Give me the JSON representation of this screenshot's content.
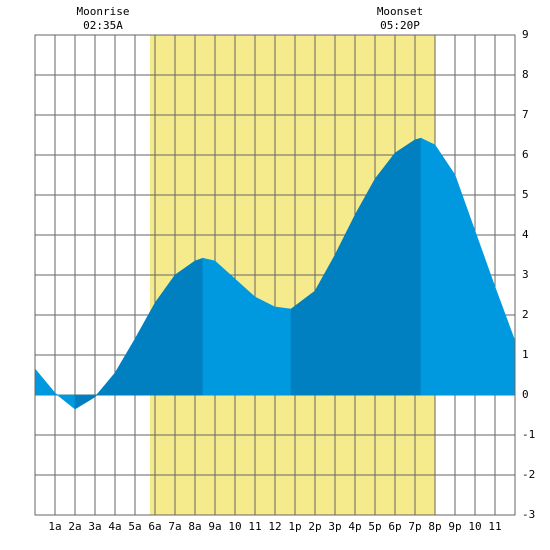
{
  "chart_data": {
    "type": "area",
    "annotations": [
      {
        "label": "Moonrise",
        "time": "02:35A"
      },
      {
        "label": "Moonset",
        "time": "05:20P"
      }
    ],
    "daylight": [
      5.75,
      20
    ],
    "x": [
      0,
      1,
      2,
      3,
      4,
      5,
      6,
      7,
      8,
      8.4,
      9,
      10,
      11,
      12,
      12.8,
      14,
      15,
      16,
      17,
      18,
      19,
      19.3,
      20,
      21,
      22,
      23,
      24
    ],
    "values": [
      0.65,
      0.05,
      -0.35,
      -0.05,
      0.55,
      1.4,
      2.3,
      3.0,
      3.35,
      3.42,
      3.35,
      2.9,
      2.45,
      2.2,
      2.15,
      2.6,
      3.5,
      4.5,
      5.4,
      6.05,
      6.38,
      6.42,
      6.25,
      5.5,
      4.1,
      2.7,
      1.35
    ],
    "rising_color": "#0080c0",
    "falling_color": "#0099e0",
    "daylight_color": "#f5eb8c",
    "xlim": [
      0,
      24
    ],
    "xticks": [
      {
        "value": 1,
        "label": "1a"
      },
      {
        "value": 2,
        "label": "2a"
      },
      {
        "value": 3,
        "label": "3a"
      },
      {
        "value": 4,
        "label": "4a"
      },
      {
        "value": 5,
        "label": "5a"
      },
      {
        "value": 6,
        "label": "6a"
      },
      {
        "value": 7,
        "label": "7a"
      },
      {
        "value": 8,
        "label": "8a"
      },
      {
        "value": 9,
        "label": "9a"
      },
      10,
      11,
      12,
      {
        "value": 13,
        "label": "1p"
      },
      {
        "value": 14,
        "label": "2p"
      },
      {
        "value": 15,
        "label": "3p"
      },
      {
        "value": 16,
        "label": "4p"
      },
      {
        "value": 17,
        "label": "5p"
      },
      {
        "value": 18,
        "label": "6p"
      },
      {
        "value": 19,
        "label": "7p"
      },
      {
        "value": 20,
        "label": "8p"
      },
      {
        "value": 21,
        "label": "9p"
      },
      {
        "value": 22,
        "label": "10"
      },
      {
        "value": 23,
        "label": "11"
      }
    ],
    "ylim": [
      -3,
      9
    ],
    "yticks": [
      -3,
      -2,
      -1,
      0,
      1,
      2,
      3,
      4,
      5,
      6,
      7,
      8,
      9
    ],
    "grid": true
  }
}
